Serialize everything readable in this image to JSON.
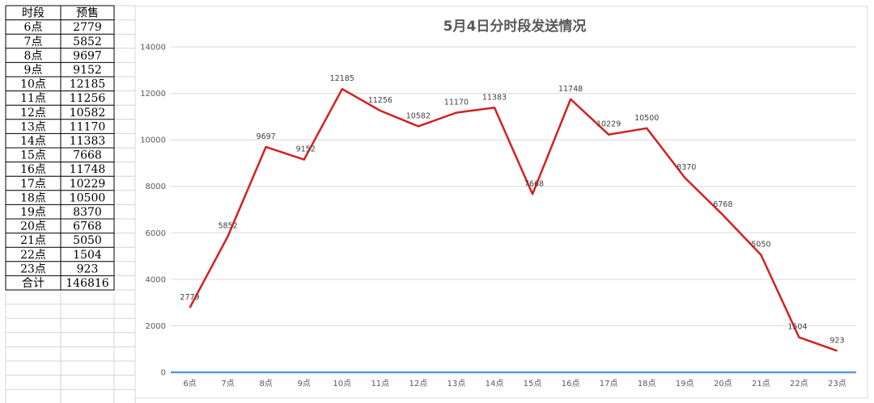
{
  "table": {
    "headers": [
      "时段",
      "预售"
    ],
    "rows": [
      [
        "6点",
        "2779"
      ],
      [
        "7点",
        "5852"
      ],
      [
        "8点",
        "9697"
      ],
      [
        "9点",
        "9152"
      ],
      [
        "10点",
        "12185"
      ],
      [
        "11点",
        "11256"
      ],
      [
        "12点",
        "10582"
      ],
      [
        "13点",
        "11170"
      ],
      [
        "14点",
        "11383"
      ],
      [
        "15点",
        "7668"
      ],
      [
        "16点",
        "11748"
      ],
      [
        "17点",
        "10229"
      ],
      [
        "18点",
        "10500"
      ],
      [
        "19点",
        "8370"
      ],
      [
        "20点",
        "6768"
      ],
      [
        "21点",
        "5050"
      ],
      [
        "22点",
        "1504"
      ],
      [
        "23点",
        "923"
      ]
    ],
    "total": [
      "合计",
      "146816"
    ]
  },
  "chart_data": {
    "type": "line",
    "title": "5月4日分时段发送情况",
    "categories": [
      "6点",
      "7点",
      "8点",
      "9点",
      "10点",
      "11点",
      "12点",
      "13点",
      "14点",
      "15点",
      "16点",
      "17点",
      "18点",
      "19点",
      "20点",
      "21点",
      "22点",
      "23点"
    ],
    "series": [
      {
        "values": [
          2779,
          5852,
          9697,
          9152,
          12185,
          11256,
          10582,
          11170,
          11383,
          7668,
          11748,
          10229,
          10500,
          8370,
          6768,
          5050,
          1504,
          923
        ],
        "color": "#d42020"
      },
      {
        "values": [
          0,
          0,
          0,
          0,
          0,
          0,
          0,
          0,
          0,
          0,
          0,
          0,
          0,
          0,
          0,
          0,
          0,
          0
        ],
        "color": "#5b9bd5"
      }
    ],
    "ylim": [
      0,
      14000
    ],
    "yticks": [
      0,
      2000,
      4000,
      6000,
      8000,
      10000,
      12000,
      14000
    ],
    "grid": true,
    "data_labels": true,
    "xlabel": "",
    "ylabel": ""
  }
}
